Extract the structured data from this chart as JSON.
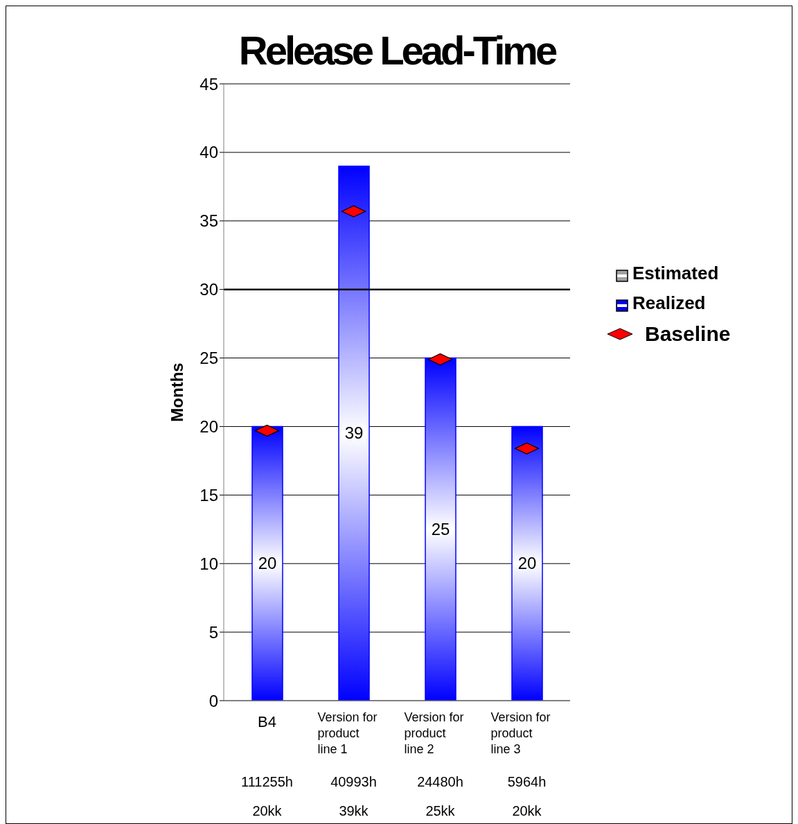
{
  "chart_data": {
    "type": "bar",
    "title": "Release Lead-Time",
    "ylabel": "Months",
    "categories": [
      "B4",
      "Version for product line 1",
      "Version for product line 2",
      "Version for product line 3"
    ],
    "series": [
      {
        "name": "Estimated",
        "color": "#a0a0a0",
        "values": [
          null,
          null,
          null,
          null
        ]
      },
      {
        "name": "Realized",
        "color": "#0000ff",
        "values": [
          20,
          39,
          25,
          20
        ],
        "value_labels": [
          "20",
          "39",
          "25",
          "20"
        ]
      },
      {
        "name": "Baseline",
        "type": "scatter",
        "color": "#ff0000",
        "values": [
          19.7,
          35.7,
          24.9,
          18.4
        ]
      }
    ],
    "marker": "diamond",
    "ylim": [
      0,
      45
    ],
    "yticks": [
      0,
      5,
      10,
      15,
      20,
      25,
      30,
      35,
      40,
      45
    ],
    "grid": "y",
    "legend": "right",
    "ref_lines": [
      {
        "axis": "y",
        "value": 30,
        "color": "#000000"
      }
    ],
    "annotations": [
      "111255h",
      "20kk",
      "40993h",
      "39kk",
      "24480h",
      "25kk",
      "5964h",
      "20kk"
    ]
  }
}
